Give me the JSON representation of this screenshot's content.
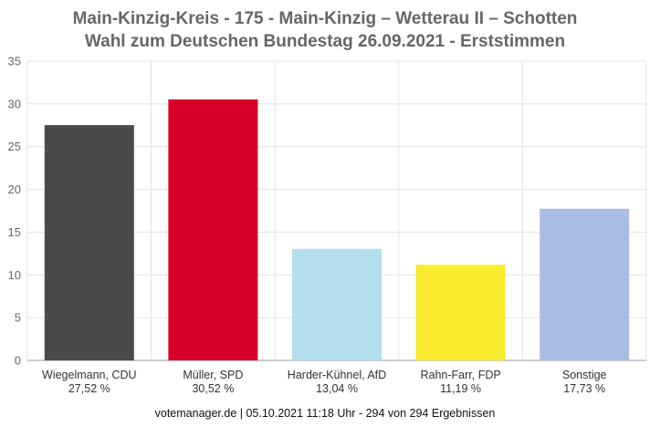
{
  "title_line1": "Main-Kinzig-Kreis - 175 - Main-Kinzig – Wetterau II – Schotten",
  "title_line2": "Wahl zum Deutschen Bundestag 26.09.2021  - Erststimmen",
  "footer": "votemanager.de | 05.10.2021 11:18 Uhr - 294 von 294 Ergebnissen",
  "chart_data": {
    "type": "bar",
    "title": "Main-Kinzig-Kreis - 175 - Main-Kinzig – Wetterau II – Schotten / Wahl zum Deutschen Bundestag 26.09.2021  - Erststimmen",
    "categories": [
      "Wiegelmann, CDU",
      "Müller, SPD",
      "Harder-Kühnel, AfD",
      "Rahn-Farr, FDP",
      "Sonstige"
    ],
    "value_labels": [
      "27,52 %",
      "30,52 %",
      "13,04 %",
      "11,19 %",
      "17,73 %"
    ],
    "values": [
      27.52,
      30.52,
      13.04,
      11.19,
      17.73
    ],
    "colors": [
      "#4a4a4a",
      "#d8002b",
      "#b3dfec",
      "#f9ec2f",
      "#a9bce4"
    ],
    "ylim": [
      0,
      35
    ],
    "yticks": [
      0,
      5,
      10,
      15,
      20,
      25,
      30,
      35
    ],
    "grid": true,
    "xlabel": "",
    "ylabel": ""
  }
}
